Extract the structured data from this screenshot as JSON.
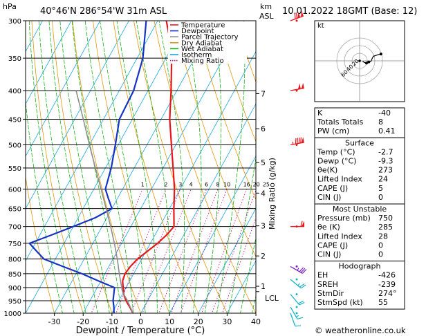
{
  "header": {
    "units_hpa": "hPa",
    "location": "40°46'N  286°54'W  31m  ASL",
    "units_km": "km",
    "units_asl": "ASL",
    "datetime": "10.01.2022  18GMT  (Base: 12)",
    "footer": "© weatheronline.co.uk"
  },
  "chart_data": {
    "type": "line",
    "xlabel": "Dewpoint / Temperature (°C)",
    "ylabel_right": "Mixing Ratio (g/kg)",
    "x_ticks": [
      -30,
      -20,
      -10,
      0,
      10,
      20,
      30,
      40
    ],
    "xlim": [
      -40,
      40
    ],
    "pressure_levels": [
      300,
      350,
      400,
      450,
      500,
      550,
      600,
      650,
      700,
      750,
      800,
      850,
      900,
      950,
      1000
    ],
    "ylim_hpa": [
      1000,
      300
    ],
    "km_ticks": [
      {
        "label": "7",
        "p": 405
      },
      {
        "label": "6",
        "p": 468
      },
      {
        "label": "5",
        "p": 538
      },
      {
        "label": "4",
        "p": 610
      },
      {
        "label": "3",
        "p": 698
      },
      {
        "label": "2",
        "p": 790
      },
      {
        "label": "1",
        "p": 895
      }
    ],
    "lcl": {
      "label": "LCL",
      "p": 915
    },
    "mixing_ratio_labels": [
      "1",
      "2",
      "3",
      "4",
      "6",
      "8",
      "10",
      "16",
      "20",
      "25"
    ],
    "mixing_ratio_values": [
      1,
      2,
      3,
      4,
      6,
      8,
      10,
      16,
      20,
      25
    ],
    "legend": [
      {
        "name": "Temperature",
        "color": "#e8161b",
        "style": "solid"
      },
      {
        "name": "Dewpoint",
        "color": "#1533c4",
        "style": "solid"
      },
      {
        "name": "Parcel Trajectory",
        "color": "#8c8c8c",
        "style": "solid"
      },
      {
        "name": "Dry Adiabat",
        "color": "#e0960a",
        "style": "solid"
      },
      {
        "name": "Wet Adiabat",
        "color": "#14b414",
        "style": "solid"
      },
      {
        "name": "Isotherm",
        "color": "#19a6e0",
        "style": "solid"
      },
      {
        "name": "Mixing Ratio",
        "color": "#c8148c",
        "style": "dotted"
      }
    ],
    "series": [
      {
        "name": "Temperature",
        "color": "#e8161b",
        "points": [
          {
            "p": 1000,
            "t": -2.7
          },
          {
            "p": 975,
            "t": -5
          },
          {
            "p": 950,
            "t": -7.5
          },
          {
            "p": 925,
            "t": -9.5
          },
          {
            "p": 900,
            "t": -11
          },
          {
            "p": 875,
            "t": -12.5
          },
          {
            "p": 850,
            "t": -13
          },
          {
            "p": 825,
            "t": -12.5
          },
          {
            "p": 800,
            "t": -11.5
          },
          {
            "p": 775,
            "t": -9.5
          },
          {
            "p": 750,
            "t": -7.5
          },
          {
            "p": 725,
            "t": -6
          },
          {
            "p": 700,
            "t": -5
          },
          {
            "p": 650,
            "t": -8.5
          },
          {
            "p": 600,
            "t": -12
          },
          {
            "p": 550,
            "t": -16.5
          },
          {
            "p": 500,
            "t": -21.5
          },
          {
            "p": 450,
            "t": -27
          },
          {
            "p": 400,
            "t": -32
          },
          {
            "p": 350,
            "t": -38
          },
          {
            "p": 325,
            "t": -42
          },
          {
            "p": 300,
            "t": -47
          }
        ]
      },
      {
        "name": "Dewpoint",
        "color": "#1533c4",
        "points": [
          {
            "p": 1000,
            "t": -9.3
          },
          {
            "p": 975,
            "t": -10.5
          },
          {
            "p": 950,
            "t": -12
          },
          {
            "p": 925,
            "t": -13
          },
          {
            "p": 900,
            "t": -14
          },
          {
            "p": 875,
            "t": -21
          },
          {
            "p": 850,
            "t": -28
          },
          {
            "p": 825,
            "t": -36
          },
          {
            "p": 800,
            "t": -44
          },
          {
            "p": 775,
            "t": -48
          },
          {
            "p": 750,
            "t": -52
          },
          {
            "p": 725,
            "t": -46
          },
          {
            "p": 700,
            "t": -40
          },
          {
            "p": 675,
            "t": -34
          },
          {
            "p": 650,
            "t": -30
          },
          {
            "p": 625,
            "t": -33
          },
          {
            "p": 600,
            "t": -36
          },
          {
            "p": 550,
            "t": -38
          },
          {
            "p": 500,
            "t": -41
          },
          {
            "p": 450,
            "t": -44.5
          },
          {
            "p": 400,
            "t": -45
          },
          {
            "p": 350,
            "t": -48
          },
          {
            "p": 300,
            "t": -54
          }
        ]
      },
      {
        "name": "Parcel Trajectory",
        "color": "#8c8c8c",
        "points": [
          {
            "p": 1000,
            "t": -2.7
          },
          {
            "p": 950,
            "t": -7
          },
          {
            "p": 915,
            "t": -10.5
          },
          {
            "p": 850,
            "t": -15
          },
          {
            "p": 800,
            "t": -18.5
          },
          {
            "p": 750,
            "t": -22.5
          },
          {
            "p": 700,
            "t": -27
          },
          {
            "p": 650,
            "t": -32
          },
          {
            "p": 600,
            "t": -37.5
          },
          {
            "p": 550,
            "t": -43.5
          },
          {
            "p": 500,
            "t": -50
          },
          {
            "p": 450,
            "t": -57
          },
          {
            "p": 400,
            "t": -65
          }
        ]
      }
    ],
    "wind_barbs": [
      {
        "p": 300,
        "dir": 250,
        "kt": 120
      },
      {
        "p": 400,
        "dir": 260,
        "kt": 100
      },
      {
        "p": 500,
        "dir": 260,
        "kt": 95
      },
      {
        "p": 700,
        "dir": 270,
        "kt": 60
      },
      {
        "p": 825,
        "dir": 300,
        "kt": 35
      },
      {
        "p": 870,
        "dir": 310,
        "kt": 25
      },
      {
        "p": 925,
        "dir": 320,
        "kt": 20
      },
      {
        "p": 975,
        "dir": 330,
        "kt": 15
      },
      {
        "p": 1000,
        "dir": 340,
        "kt": 10
      }
    ]
  },
  "hodograph": {
    "unit_label": "kt",
    "ring_labels": [
      "20",
      "40",
      "60"
    ],
    "points": [
      {
        "u": 8,
        "v": -1
      },
      {
        "u": 12,
        "v": -4
      },
      {
        "u": 18,
        "v": -6
      },
      {
        "u": 24,
        "v": -3
      },
      {
        "u": 30,
        "v": -1
      },
      {
        "u": 33,
        "v": 6
      },
      {
        "u": 36,
        "v": 12
      },
      {
        "u": 48,
        "v": 16
      },
      {
        "u": 56,
        "v": 18
      }
    ],
    "marker_points": [
      {
        "u": 18,
        "v": -6
      },
      {
        "u": 24,
        "v": -3
      },
      {
        "u": 56,
        "v": 18
      }
    ]
  },
  "indices": {
    "rows": [
      {
        "label": "K",
        "value": "-40"
      },
      {
        "label": "Totals Totals",
        "value": "8"
      },
      {
        "label": "PW (cm)",
        "value": "0.41"
      }
    ]
  },
  "surface": {
    "title": "Surface",
    "rows": [
      {
        "label": "Temp (°C)",
        "value": "-2.7"
      },
      {
        "label": "Dewp (°C)",
        "value": "-9.3"
      },
      {
        "label": "θe(K)",
        "value": "273"
      },
      {
        "label": "Lifted Index",
        "value": "24"
      },
      {
        "label": "CAPE (J)",
        "value": "5"
      },
      {
        "label": "CIN (J)",
        "value": "0"
      }
    ]
  },
  "most_unstable": {
    "title": "Most Unstable",
    "rows": [
      {
        "label": "Pressure (mb)",
        "value": "750"
      },
      {
        "label": "θe (K)",
        "value": "285"
      },
      {
        "label": "Lifted Index",
        "value": "28"
      },
      {
        "label": "CAPE (J)",
        "value": "0"
      },
      {
        "label": "CIN (J)",
        "value": "0"
      }
    ]
  },
  "hodograph_table": {
    "title": "Hodograph",
    "rows": [
      {
        "label": "EH",
        "value": "-426"
      },
      {
        "label": "SREH",
        "value": "-239"
      },
      {
        "label": "StmDir",
        "value": "274°"
      },
      {
        "label": "StmSpd (kt)",
        "value": "55"
      }
    ]
  }
}
